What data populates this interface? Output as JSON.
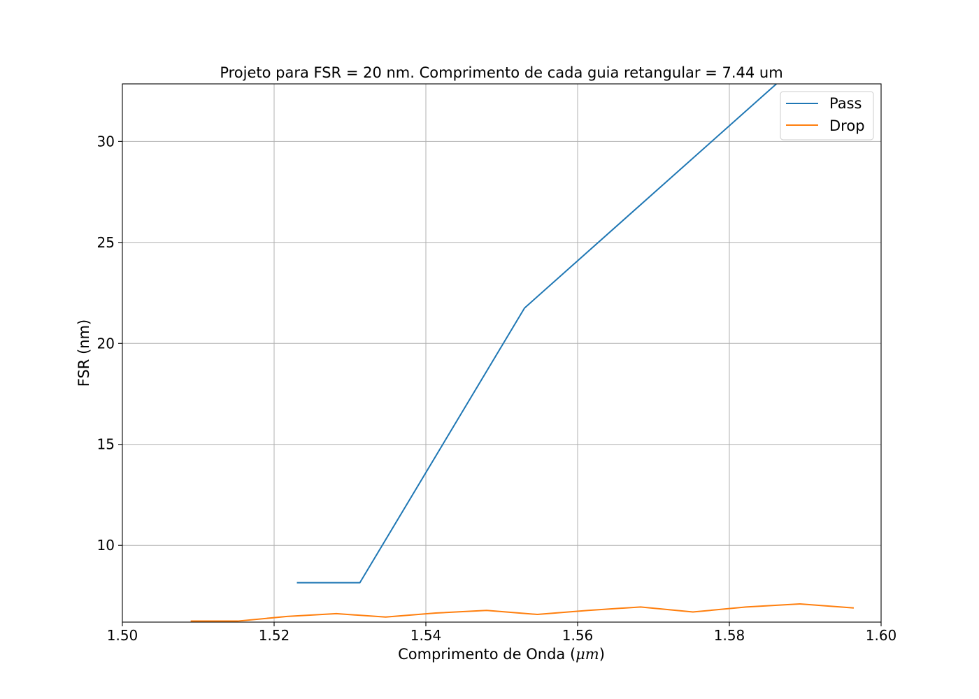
{
  "chart_data": {
    "type": "line",
    "title": "Projeto para FSR = 20 nm. Comprimento de cada guia retangular = 7.44 um",
    "xlabel_prefix": "Comprimento de Onda (",
    "xlabel_math": "μm",
    "xlabel_suffix": ")",
    "ylabel": "FSR (nm)",
    "xlim": [
      1.5,
      1.6
    ],
    "ylim": [
      6.2,
      32.85
    ],
    "xticks": [
      1.5,
      1.52,
      1.54,
      1.56,
      1.58,
      1.6
    ],
    "xtick_labels": [
      "1.50",
      "1.52",
      "1.54",
      "1.56",
      "1.58",
      "1.60"
    ],
    "yticks": [
      10,
      15,
      20,
      25,
      30
    ],
    "ytick_labels": [
      "10",
      "15",
      "20",
      "25",
      "30"
    ],
    "grid": true,
    "legend_position": "top-right",
    "series": [
      {
        "name": "Pass",
        "color": "#1f77b4",
        "x": [
          1.523,
          1.5313,
          1.553,
          1.5862
        ],
        "y": [
          8.15,
          8.15,
          21.75,
          32.85
        ]
      },
      {
        "name": "Drop",
        "color": "#ff7f0e",
        "x": [
          1.509,
          1.5152,
          1.5217,
          1.5282,
          1.5347,
          1.5413,
          1.548,
          1.5547,
          1.5614,
          1.5683,
          1.5752,
          1.5822,
          1.5893,
          1.5964
        ],
        "y": [
          6.25,
          6.25,
          6.48,
          6.62,
          6.45,
          6.65,
          6.78,
          6.58,
          6.78,
          6.95,
          6.7,
          6.95,
          7.1,
          6.9
        ]
      }
    ]
  }
}
